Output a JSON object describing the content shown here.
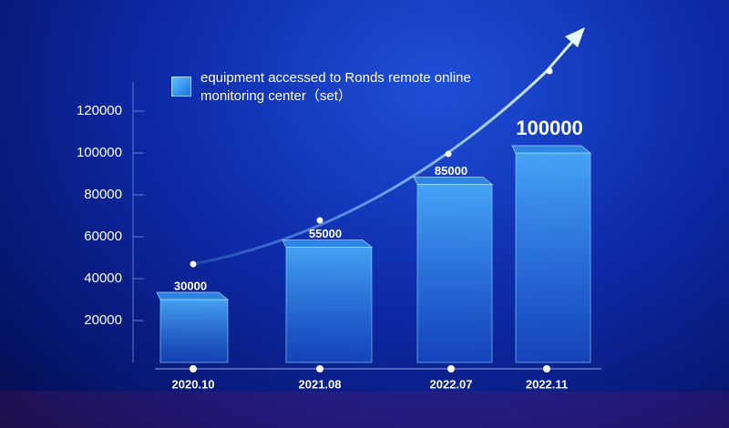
{
  "chart_data": {
    "type": "bar",
    "categories": [
      "2020.10",
      "2021.08",
      "2022.07",
      "2022.11"
    ],
    "series": [
      {
        "name": "equipment accessed to Ronds remote online monitoring center（set）",
        "color": "#2f8fe8",
        "values": [
          30000,
          55000,
          85000,
          100000
        ]
      }
    ],
    "ylim": [
      0,
      130000
    ],
    "yticks": [
      20000,
      40000,
      60000,
      80000,
      100000,
      120000
    ]
  }
}
